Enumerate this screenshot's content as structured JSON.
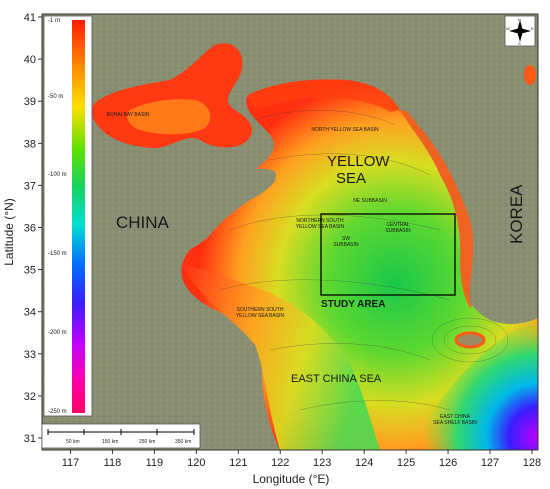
{
  "map": {
    "axes": {
      "xlabel": "Longitude (°E)",
      "ylabel": "Latitude (°N)",
      "x_ticks": [
        "117",
        "118",
        "119",
        "120",
        "121",
        "122",
        "123",
        "124",
        "125",
        "126",
        "127",
        "128"
      ],
      "y_ticks": [
        "41",
        "40",
        "39",
        "38",
        "37",
        "36",
        "35",
        "34",
        "33",
        "32",
        "31"
      ]
    },
    "region_labels": {
      "china": "CHINA",
      "korea": "KOREA",
      "yellow_sea": "YELLOW\nSEA",
      "east_china_sea": "EAST CHINA SEA",
      "study_area": "STUDY AREA"
    },
    "basin_labels": {
      "bohai": "BOHAI BAY BASIN",
      "north_yellow": "NORTH YELLOW SEA BASIN",
      "ne_sub": "NE SUBBASIN",
      "central_sub": "CENTRAL\nSUBBASIN",
      "sw_sub": "SW\nSUBBASIN",
      "northern_south": "NORTHERN SOUTH\nYELLOW SEA BASIN",
      "southern_south": "SOUTHERN SOUTH\nYELLOW SEA BASIN",
      "shelf": "EAST CHINA\nSEA SHELF BASIN"
    },
    "depth_legend": {
      "labels": [
        "-1 m",
        "-50 m",
        "-100 m",
        "-150 m",
        "-200 m",
        "-250 m"
      ],
      "colors": [
        "#ff1a00",
        "#ff8c00",
        "#ffe000",
        "#5ee000",
        "#19d35c",
        "#00e0d0",
        "#0070ff",
        "#3a1cff",
        "#c000ff",
        "#ff00aa",
        "#ff0066"
      ]
    },
    "scale_bar": {
      "labels": [
        "50 km",
        "150 km",
        "250 km",
        "350 km"
      ]
    },
    "compass": {
      "icon": "compass-rose-icon",
      "labels": [
        "N",
        "E",
        "S",
        "W"
      ]
    },
    "colors": {
      "land": "#8a8e72",
      "box": "#000000"
    }
  }
}
